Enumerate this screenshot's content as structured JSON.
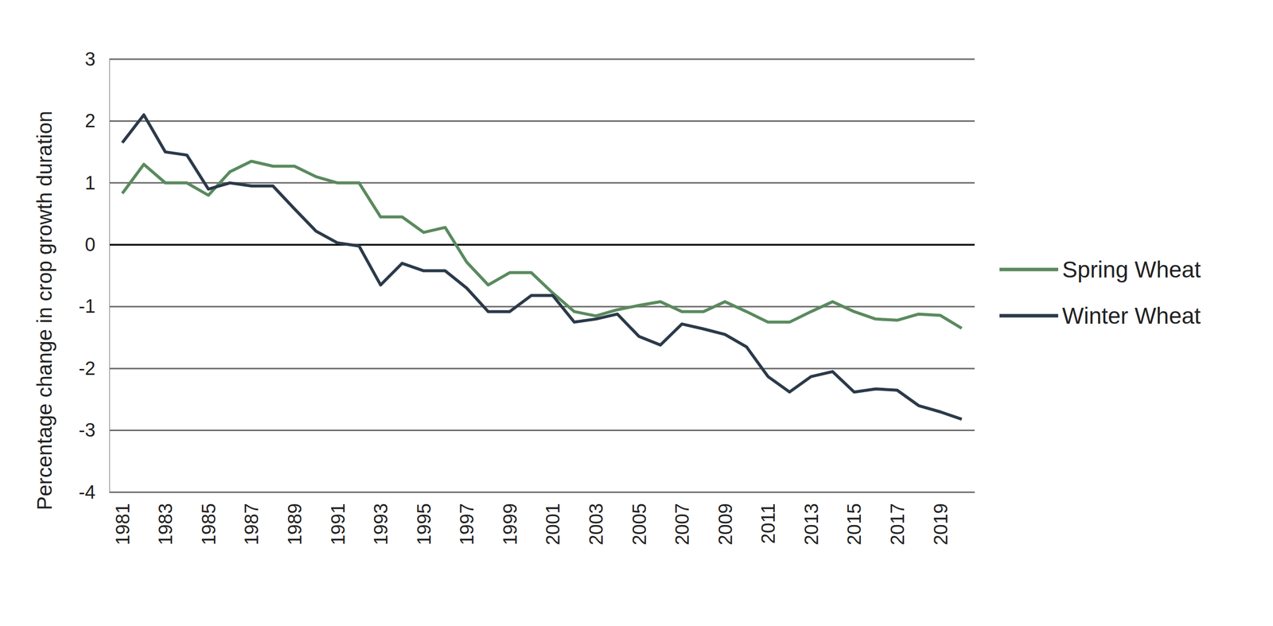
{
  "chart_data": {
    "type": "line",
    "y_label": "Percentage change in crop growth duration",
    "categories": [
      "1981",
      null,
      "1983",
      null,
      "1985",
      null,
      "1987",
      null,
      "1989",
      null,
      "1991",
      null,
      "1993",
      null,
      "1995",
      null,
      "1997",
      null,
      "1999",
      null,
      "2001",
      null,
      "2003",
      null,
      "2005",
      null,
      "2007",
      null,
      "2009",
      null,
      "2011",
      null,
      "2013",
      null,
      "2015",
      null,
      "2017",
      null,
      "2019",
      null
    ],
    "ylim": [
      -4,
      3
    ],
    "yticks": [
      -4,
      -3,
      -2,
      -1,
      0,
      1,
      2,
      3
    ],
    "grid": true,
    "legend": "right",
    "series": [
      {
        "name": "Spring Wheat",
        "color": "#5a8a5e",
        "values": [
          0.83,
          1.3,
          1.0,
          1.0,
          0.8,
          1.18,
          1.35,
          1.27,
          1.27,
          1.1,
          1.0,
          1.0,
          0.45,
          0.45,
          0.2,
          0.28,
          -0.28,
          -0.65,
          -0.45,
          -0.45,
          -0.78,
          -1.08,
          -1.15,
          -1.05,
          -0.98,
          -0.92,
          -1.08,
          -1.08,
          -0.92,
          -1.08,
          -1.25,
          -1.25,
          -1.08,
          -0.92,
          -1.08,
          -1.2,
          -1.22,
          -1.12,
          -1.14,
          -1.35
        ]
      },
      {
        "name": "Winter Wheat",
        "color": "#2b3a4a",
        "values": [
          1.65,
          2.1,
          1.5,
          1.45,
          0.9,
          1.0,
          0.95,
          0.95,
          0.58,
          0.22,
          0.03,
          -0.02,
          -0.65,
          -0.3,
          -0.42,
          -0.42,
          -0.7,
          -1.08,
          -1.08,
          -0.82,
          -0.82,
          -1.25,
          -1.2,
          -1.12,
          -1.48,
          -1.62,
          -1.28,
          -1.36,
          -1.45,
          -1.65,
          -2.13,
          -2.38,
          -2.13,
          -2.05,
          -2.38,
          -2.33,
          -2.35,
          -2.6,
          -2.7,
          -2.82
        ]
      }
    ]
  }
}
